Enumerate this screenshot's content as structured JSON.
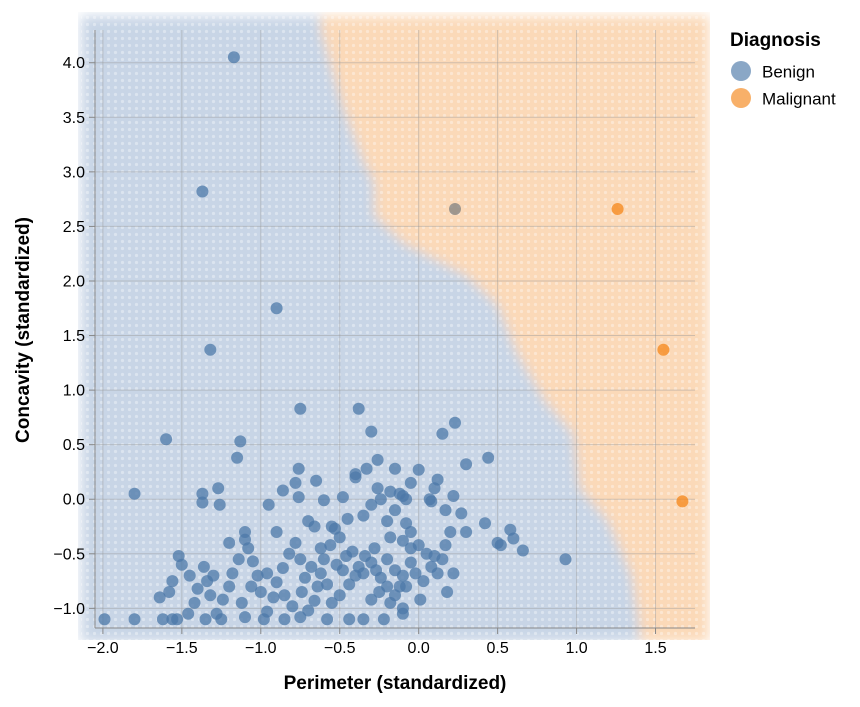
{
  "chart_data": {
    "type": "scatter",
    "xlabel": "Perimeter (standardized)",
    "ylabel": "Concavity (standardized)",
    "xlim": [
      -2.05,
      1.75
    ],
    "ylim": [
      -1.18,
      4.3
    ],
    "x_ticks": [
      -2.0,
      -1.5,
      -1.0,
      -0.5,
      0.0,
      0.5,
      1.0,
      1.5
    ],
    "x_tick_labels": [
      "−2.0",
      "−1.5",
      "−1.0",
      "−0.5",
      "0.0",
      "0.5",
      "1.0",
      "1.5"
    ],
    "y_ticks": [
      -1.0,
      -0.5,
      0.0,
      0.5,
      1.0,
      1.5,
      2.0,
      2.5,
      3.0,
      3.5,
      4.0
    ],
    "y_tick_labels": [
      "−1.0",
      "−0.5",
      "0.0",
      "0.5",
      "1.0",
      "1.5",
      "2.0",
      "2.5",
      "3.0",
      "3.5",
      "4.0"
    ],
    "grid": true,
    "legend": {
      "title": "Diagnosis",
      "placement": "right",
      "entries": [
        {
          "label": "Benign",
          "color": "#4c78a8"
        },
        {
          "label": "Malignant",
          "color": "#f58518"
        }
      ]
    },
    "background": "decision regions (Benign = blue, Malignant = orange)",
    "region_colors": {
      "Benign": "#c8d5e6",
      "Malignant": "#fbd9b8"
    },
    "boundary": [
      [
        -0.62,
        4.3
      ],
      [
        -0.48,
        3.6
      ],
      [
        -0.35,
        3.1
      ],
      [
        -0.28,
        2.9
      ],
      [
        -0.28,
        2.6
      ],
      [
        -0.1,
        2.35
      ],
      [
        0.1,
        2.2
      ],
      [
        0.3,
        2.05
      ],
      [
        0.5,
        1.78
      ],
      [
        0.62,
        1.35
      ],
      [
        0.8,
        0.9
      ],
      [
        0.98,
        0.6
      ],
      [
        1.02,
        0.1
      ],
      [
        1.2,
        -0.2
      ],
      [
        1.35,
        -0.7
      ],
      [
        1.4,
        -1.18
      ]
    ],
    "series": [
      {
        "name": "Benign",
        "color": "#4c78a8",
        "points": [
          [
            -1.17,
            4.05
          ],
          [
            -1.37,
            2.82
          ],
          [
            -0.9,
            1.75
          ],
          [
            -1.32,
            1.37
          ],
          [
            -0.75,
            0.83
          ],
          [
            -0.38,
            0.83
          ],
          [
            -1.6,
            0.55
          ],
          [
            -1.13,
            0.53
          ],
          [
            -0.3,
            0.62
          ],
          [
            -1.15,
            0.38
          ],
          [
            -1.8,
            0.05
          ],
          [
            -1.37,
            0.05
          ],
          [
            -1.37,
            -0.03
          ],
          [
            -1.27,
            0.1
          ],
          [
            -1.26,
            -0.05
          ],
          [
            -0.76,
            0.28
          ],
          [
            -0.78,
            0.15
          ],
          [
            -0.65,
            0.17
          ],
          [
            -0.86,
            0.08
          ],
          [
            -0.76,
            0.02
          ],
          [
            -0.6,
            -0.01
          ],
          [
            -0.95,
            -0.05
          ],
          [
            -0.48,
            0.02
          ],
          [
            -0.4,
            0.2
          ],
          [
            -0.4,
            0.23
          ],
          [
            -0.33,
            0.28
          ],
          [
            -0.26,
            0.36
          ],
          [
            -0.15,
            0.28
          ],
          [
            -0.26,
            0.1
          ],
          [
            -0.24,
            0.0
          ],
          [
            -0.3,
            -0.05
          ],
          [
            -0.18,
            0.07
          ],
          [
            -0.12,
            0.05
          ],
          [
            -0.1,
            0.03
          ],
          [
            -0.08,
            0.0
          ],
          [
            -0.05,
            0.15
          ],
          [
            0.0,
            0.27
          ],
          [
            0.1,
            0.1
          ],
          [
            0.12,
            0.18
          ],
          [
            0.15,
            0.6
          ],
          [
            0.23,
            0.7
          ],
          [
            0.3,
            0.32
          ],
          [
            0.44,
            0.38
          ],
          [
            0.22,
            0.03
          ],
          [
            0.08,
            -0.02
          ],
          [
            0.07,
            0.0
          ],
          [
            0.17,
            -0.1
          ],
          [
            0.27,
            -0.13
          ],
          [
            0.3,
            -0.3
          ],
          [
            0.42,
            -0.22
          ],
          [
            0.5,
            -0.4
          ],
          [
            0.52,
            -0.42
          ],
          [
            0.58,
            -0.28
          ],
          [
            0.6,
            -0.36
          ],
          [
            0.66,
            -0.47
          ],
          [
            0.93,
            -0.55
          ],
          [
            0.2,
            -0.3
          ],
          [
            0.17,
            -0.42
          ],
          [
            0.1,
            -0.52
          ],
          [
            0.05,
            -0.5
          ],
          [
            0.0,
            -0.42
          ],
          [
            -0.05,
            -0.45
          ],
          [
            -0.1,
            -0.38
          ],
          [
            -0.05,
            -0.3
          ],
          [
            0.03,
            -0.75
          ],
          [
            0.08,
            -0.62
          ],
          [
            0.12,
            -0.68
          ],
          [
            0.15,
            -0.55
          ],
          [
            0.22,
            -0.68
          ],
          [
            0.18,
            -0.85
          ],
          [
            0.01,
            -0.92
          ],
          [
            -0.1,
            -0.7
          ],
          [
            -0.12,
            -0.8
          ],
          [
            -0.15,
            -0.88
          ],
          [
            -0.1,
            -1.0
          ],
          [
            -0.18,
            -0.95
          ],
          [
            -0.2,
            -0.8
          ],
          [
            -0.24,
            -0.72
          ],
          [
            -0.27,
            -0.65
          ],
          [
            -0.3,
            -0.58
          ],
          [
            -0.34,
            -0.52
          ],
          [
            -0.38,
            -0.62
          ],
          [
            -0.4,
            -0.7
          ],
          [
            -0.44,
            -0.78
          ],
          [
            -0.48,
            -0.65
          ],
          [
            -0.42,
            -0.48
          ],
          [
            -0.5,
            -0.35
          ],
          [
            -0.53,
            -0.27
          ],
          [
            -0.56,
            -0.42
          ],
          [
            -0.6,
            -0.55
          ],
          [
            -0.62,
            -0.68
          ],
          [
            -0.64,
            -0.8
          ],
          [
            -0.66,
            -0.93
          ],
          [
            -0.7,
            -1.02
          ],
          [
            -0.72,
            -0.72
          ],
          [
            -0.75,
            -0.55
          ],
          [
            -0.78,
            -0.4
          ],
          [
            -0.82,
            -0.5
          ],
          [
            -0.86,
            -0.63
          ],
          [
            -0.9,
            -0.76
          ],
          [
            -0.92,
            -0.9
          ],
          [
            -0.96,
            -1.03
          ],
          [
            -1.0,
            -0.85
          ],
          [
            -1.02,
            -0.7
          ],
          [
            -1.05,
            -0.57
          ],
          [
            -1.08,
            -0.45
          ],
          [
            -1.1,
            -0.37
          ],
          [
            -1.14,
            -0.55
          ],
          [
            -1.18,
            -0.68
          ],
          [
            -1.2,
            -0.8
          ],
          [
            -1.24,
            -0.92
          ],
          [
            -1.28,
            -1.05
          ],
          [
            -1.32,
            -0.88
          ],
          [
            -1.34,
            -0.75
          ],
          [
            -1.36,
            -0.62
          ],
          [
            -1.4,
            -0.82
          ],
          [
            -1.42,
            -0.95
          ],
          [
            -1.46,
            -1.05
          ],
          [
            -1.5,
            -0.6
          ],
          [
            -1.52,
            -0.52
          ],
          [
            -1.56,
            -0.75
          ],
          [
            -1.58,
            -0.85
          ],
          [
            -1.64,
            -0.9
          ],
          [
            -1.56,
            -1.1
          ],
          [
            -1.53,
            -1.1
          ],
          [
            -1.62,
            -1.1
          ],
          [
            -1.8,
            -1.1
          ],
          [
            -1.99,
            -1.1
          ],
          [
            -1.35,
            -1.1
          ],
          [
            -1.25,
            -1.1
          ],
          [
            -1.1,
            -1.08
          ],
          [
            -0.98,
            -1.1
          ],
          [
            -0.85,
            -1.1
          ],
          [
            -0.75,
            -1.08
          ],
          [
            -0.58,
            -1.1
          ],
          [
            -0.44,
            -1.1
          ],
          [
            -0.35,
            -1.1
          ],
          [
            -0.22,
            -1.1
          ],
          [
            -0.1,
            -1.05
          ],
          [
            -0.66,
            -0.25
          ],
          [
            -0.7,
            -0.2
          ],
          [
            -0.9,
            -0.3
          ],
          [
            -1.1,
            -0.3
          ],
          [
            -1.2,
            -0.4
          ],
          [
            -0.55,
            -0.25
          ],
          [
            -0.45,
            -0.18
          ],
          [
            -0.35,
            -0.15
          ],
          [
            -0.2,
            -0.2
          ],
          [
            -0.15,
            -0.1
          ],
          [
            -0.08,
            -0.22
          ],
          [
            -0.85,
            -0.88
          ],
          [
            -0.8,
            -0.98
          ],
          [
            -0.55,
            -0.95
          ],
          [
            -0.5,
            -0.88
          ],
          [
            -0.3,
            -0.92
          ],
          [
            -0.25,
            -0.85
          ],
          [
            -0.58,
            -0.78
          ],
          [
            -0.52,
            -0.6
          ],
          [
            -0.35,
            -0.68
          ],
          [
            -0.2,
            -0.55
          ],
          [
            -0.15,
            -0.65
          ],
          [
            -0.05,
            -0.58
          ],
          [
            -0.08,
            -0.8
          ],
          [
            -0.68,
            -0.62
          ],
          [
            -0.74,
            -0.85
          ],
          [
            -0.96,
            -0.68
          ],
          [
            -1.06,
            -0.8
          ],
          [
            -1.12,
            -0.95
          ],
          [
            -1.3,
            -0.7
          ],
          [
            -1.45,
            -0.7
          ],
          [
            -0.62,
            -0.45
          ],
          [
            -0.46,
            -0.52
          ],
          [
            -0.28,
            -0.45
          ],
          [
            -0.18,
            -0.35
          ],
          [
            -0.02,
            -0.68
          ]
        ]
      },
      {
        "name": "Malignant",
        "color": "#f58518",
        "points": [
          [
            1.26,
            2.66
          ],
          [
            1.55,
            1.37
          ],
          [
            1.67,
            -0.02
          ]
        ]
      },
      {
        "name": "",
        "color": "#7f7f7f",
        "points": [
          [
            0.23,
            2.66
          ]
        ]
      }
    ]
  }
}
